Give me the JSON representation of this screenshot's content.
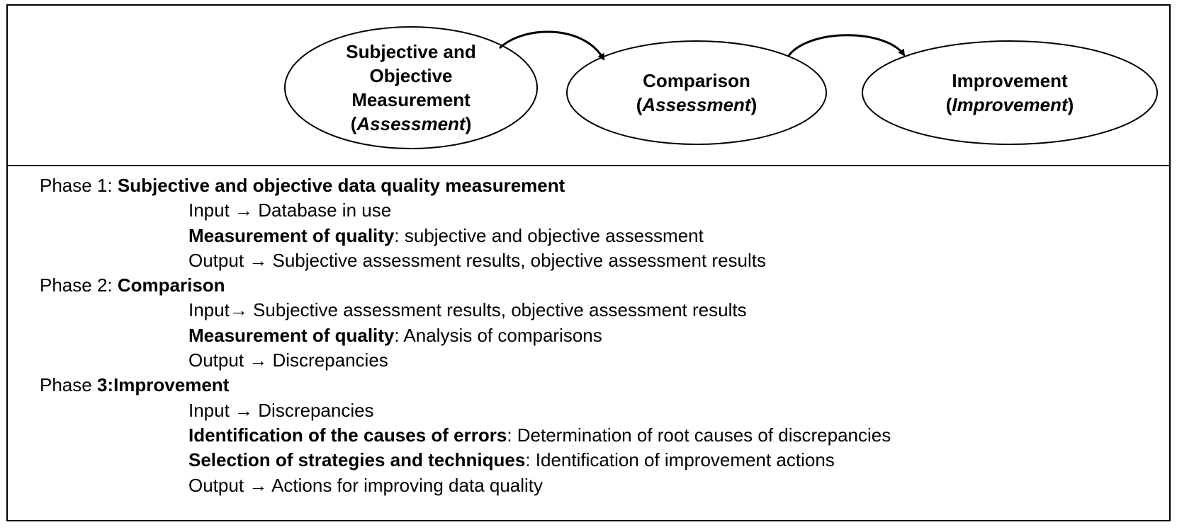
{
  "diagram": {
    "nodes": [
      {
        "id": "measurement",
        "lines": [
          "Subjective and",
          "Objective",
          "Measurement"
        ],
        "prefix": "(",
        "italic": "Assessment",
        "suffix": ")"
      },
      {
        "id": "comparison",
        "lines": [
          "Comparison"
        ],
        "prefix": "(",
        "italic": "Assessment",
        "suffix": ")"
      },
      {
        "id": "improvement",
        "lines": [
          "Improvement"
        ],
        "prefix": "(",
        "italic": "Improvement",
        "suffix": ")"
      }
    ]
  },
  "phases": [
    {
      "label": "Phase 1: ",
      "title": "Subjective and objective data quality measurement",
      "items": [
        {
          "bold": "",
          "text": "Input → Database in use"
        },
        {
          "bold": "Measurement of quality",
          "text": ": subjective and objective assessment"
        },
        {
          "bold": "",
          "text": "Output → Subjective assessment results, objective assessment results"
        }
      ]
    },
    {
      "label": "Phase 2: ",
      "title": "Comparison",
      "items": [
        {
          "bold": "",
          "text": "Input→ Subjective assessment results, objective assessment results"
        },
        {
          "bold": "Measurement of quality",
          "text": ": Analysis of comparisons"
        },
        {
          "bold": "",
          "text": "Output → Discrepancies"
        }
      ]
    },
    {
      "label": "Phase ",
      "title": "3:Improvement",
      "items": [
        {
          "bold": "",
          "text": "Input → Discrepancies"
        },
        {
          "bold": "Identification of the causes of errors",
          "text": ": Determination of root causes of discrepancies"
        },
        {
          "bold": "Selection of strategies and techniques",
          "text": ": Identification of improvement actions"
        },
        {
          "bold": "",
          "text": "Output → Actions for improving data quality"
        }
      ]
    }
  ]
}
